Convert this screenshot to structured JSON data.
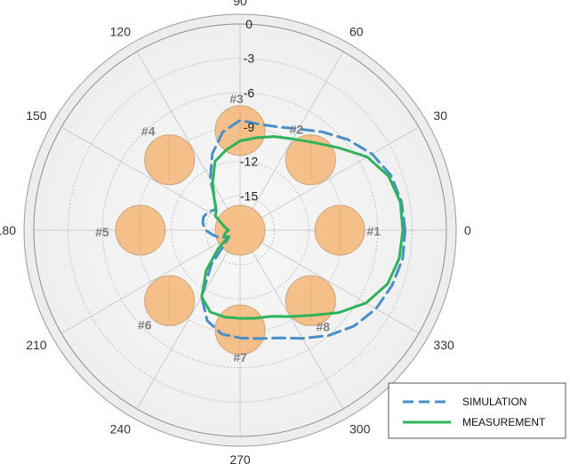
{
  "chart_data": {
    "type": "polar-line",
    "angle_unit": "degrees",
    "angle_ticks": [
      "0",
      "30",
      "60",
      "90",
      "120",
      "150",
      "180",
      "210",
      "240",
      "270",
      "300",
      "330"
    ],
    "radial_ticks": [
      "0",
      "-3",
      "-6",
      "-9",
      "-12",
      "-15"
    ],
    "radial_range": [
      -18,
      0
    ],
    "grid": true,
    "legend_position": "bottom-right",
    "elements": [
      {
        "label": "#1",
        "angle_deg": 0,
        "radius_db": -9.3
      },
      {
        "label": "#2",
        "angle_deg": 45,
        "radius_db": -9.3
      },
      {
        "label": "#3",
        "angle_deg": 90,
        "radius_db": -9.3
      },
      {
        "label": "#4",
        "angle_deg": 135,
        "radius_db": -9.3
      },
      {
        "label": "#5",
        "angle_deg": 180,
        "radius_db": -9.3
      },
      {
        "label": "#6",
        "angle_deg": 225,
        "radius_db": -9.3
      },
      {
        "label": "#7",
        "angle_deg": 270,
        "radius_db": -9.3
      },
      {
        "label": "#8",
        "angle_deg": 315,
        "radius_db": -9.3
      }
    ],
    "center_element": {
      "angle_deg": 0,
      "radius_db": -18
    },
    "series": [
      {
        "name": "SIMULATION",
        "color": "#4a8ec8",
        "dash": true,
        "points": [
          [
            0,
            -3.6
          ],
          [
            10,
            -3.7
          ],
          [
            20,
            -4.0
          ],
          [
            30,
            -4.7
          ],
          [
            40,
            -5.7
          ],
          [
            50,
            -6.8
          ],
          [
            60,
            -7.8
          ],
          [
            70,
            -8.4
          ],
          [
            80,
            -8.6
          ],
          [
            90,
            -8.4
          ],
          [
            100,
            -9.3
          ],
          [
            110,
            -10.9
          ],
          [
            120,
            -12.8
          ],
          [
            130,
            -14.6
          ],
          [
            140,
            -15.2
          ],
          [
            150,
            -14.8
          ],
          [
            160,
            -14.6
          ],
          [
            170,
            -14.7
          ],
          [
            180,
            -15.0
          ],
          [
            190,
            -15.6
          ],
          [
            200,
            -16.1
          ],
          [
            210,
            -16.9
          ],
          [
            220,
            -16.4
          ],
          [
            230,
            -14.1
          ],
          [
            240,
            -11.3
          ],
          [
            250,
            -9.6
          ],
          [
            260,
            -8.8
          ],
          [
            270,
            -8.6
          ],
          [
            280,
            -8.4
          ],
          [
            290,
            -8.0
          ],
          [
            300,
            -7.1
          ],
          [
            310,
            -6.0
          ],
          [
            320,
            -5.0
          ],
          [
            330,
            -4.3
          ],
          [
            340,
            -3.9
          ],
          [
            350,
            -3.6
          ],
          [
            360,
            -3.6
          ]
        ]
      },
      {
        "name": "MEASUREMENT",
        "color": "#2eb35a",
        "dash": false,
        "points": [
          [
            0,
            -3.8
          ],
          [
            10,
            -3.8
          ],
          [
            20,
            -4.2
          ],
          [
            30,
            -5.2
          ],
          [
            40,
            -6.8
          ],
          [
            50,
            -8.0
          ],
          [
            60,
            -8.8
          ],
          [
            70,
            -9.3
          ],
          [
            80,
            -9.8
          ],
          [
            90,
            -10.2
          ],
          [
            100,
            -10.9
          ],
          [
            110,
            -11.6
          ],
          [
            120,
            -13.2
          ],
          [
            130,
            -14.5
          ],
          [
            140,
            -15.3
          ],
          [
            150,
            -15.5
          ],
          [
            160,
            -16.3
          ],
          [
            170,
            -16.7
          ],
          [
            180,
            -17.0
          ],
          [
            190,
            -16.7
          ],
          [
            200,
            -16.5
          ],
          [
            210,
            -16.8
          ],
          [
            220,
            -15.5
          ],
          [
            230,
            -13.4
          ],
          [
            240,
            -11.3
          ],
          [
            250,
            -10.4
          ],
          [
            260,
            -10.3
          ],
          [
            270,
            -10.3
          ],
          [
            280,
            -10.2
          ],
          [
            290,
            -10.0
          ],
          [
            300,
            -9.3
          ],
          [
            310,
            -8.3
          ],
          [
            320,
            -6.8
          ],
          [
            330,
            -5.3
          ],
          [
            340,
            -4.3
          ],
          [
            350,
            -3.9
          ],
          [
            360,
            -3.8
          ]
        ]
      }
    ]
  }
}
